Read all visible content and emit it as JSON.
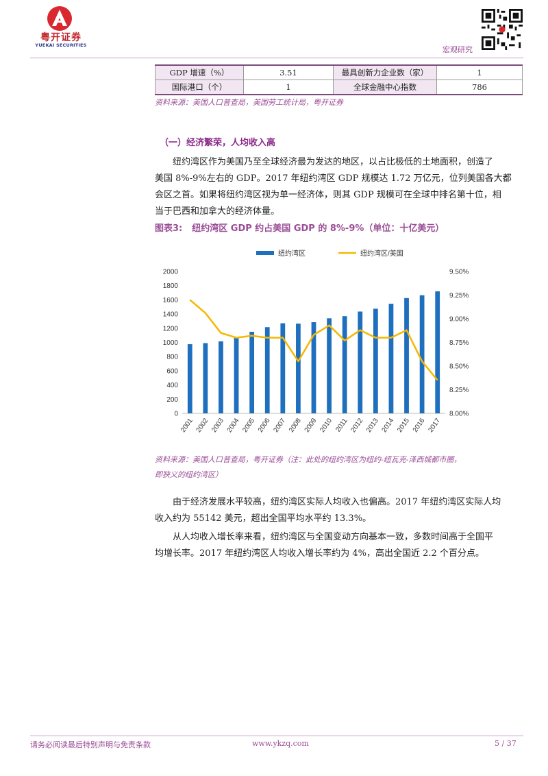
{
  "header": {
    "brand_cn": "粤开证券",
    "brand_en": "YUEKAI SECURITIES",
    "section_label": "宏观研究"
  },
  "table": {
    "rows": [
      [
        "GDP 增速（%）",
        "3.51",
        "最具创新力企业数（家）",
        "1"
      ],
      [
        "国际港口（个）",
        "1",
        "全球金融中心指数",
        "786"
      ]
    ],
    "source": "资料来源：美国人口普查局，美国劳工统计局，粤开证券"
  },
  "section": {
    "title": "（一）经济繁荣，人均收入高"
  },
  "paragraphs": {
    "p1_l1": "纽约湾区作为美国乃至全球经济最为发达的地区，以占比极低的土地面积，创造了",
    "p1_l2": "美国 8%-9%左右的 GDP。2017 年纽约湾区 GDP 规模达 1.72 万亿元，位列美国各大都",
    "p1_l3": "会区之首。如果将纽约湾区视为单一经济体，则其 GDP 规模可在全球中排名第十位，相",
    "p1_l4": "当于巴西和加拿大的经济体量。",
    "p2_l1": "由于经济发展水平较高，纽约湾区实际人均收入也偏高。2017 年纽约湾区实际人均",
    "p2_l2": "收入约为 55142 美元，超出全国平均水平约 13.3%。",
    "p3_l1": "从人均收入增长率来看，纽约湾区与全国变动方向基本一致，多数时间高于全国平",
    "p3_l2": "均增长率。2017 年纽约湾区人均收入增长率约为 4%，高出全国近 2.2 个百分点。"
  },
  "figure": {
    "number": "图表3:",
    "title": "纽约湾区 GDP 约占美国 GDP 的 8%-9%（单位：十亿美元）",
    "source_l1": "资料来源：美国人口普查局，粤开证券（注：此处的纽约湾区为纽约-纽瓦克-泽西城都市圈，",
    "source_l2": "即狭义的纽约湾区）"
  },
  "chart_data": {
    "type": "bar+line",
    "categories": [
      "2001",
      "2002",
      "2003",
      "2004",
      "2005",
      "2006",
      "2007",
      "2008",
      "2009",
      "2010",
      "2011",
      "2012",
      "2013",
      "2014",
      "2015",
      "2016",
      "2017"
    ],
    "series": [
      {
        "name": "纽约湾区",
        "kind": "bar",
        "axis": "left",
        "values": [
          975,
          990,
          1015,
          1075,
          1150,
          1215,
          1270,
          1265,
          1285,
          1340,
          1370,
          1435,
          1475,
          1545,
          1625,
          1665,
          1720
        ],
        "color": "#1f6fbf"
      },
      {
        "name": "纽约湾区/美国",
        "kind": "line",
        "axis": "right",
        "values": [
          9.2,
          9.06,
          8.85,
          8.8,
          8.82,
          8.8,
          8.8,
          8.55,
          8.83,
          8.93,
          8.77,
          8.88,
          8.8,
          8.8,
          8.88,
          8.55,
          8.35
        ],
        "color": "#f5b800"
      }
    ],
    "y_left": {
      "min": 0,
      "max": 2000,
      "ticks": [
        "0",
        "200",
        "400",
        "600",
        "800",
        "1000",
        "1200",
        "1400",
        "1600",
        "1800",
        "2000"
      ]
    },
    "y_right": {
      "min": 8.0,
      "max": 9.5,
      "ticks": [
        "8.00%",
        "8.25%",
        "8.50%",
        "8.75%",
        "9.00%",
        "9.25%",
        "9.50%"
      ]
    },
    "legend_position": "top"
  },
  "footer": {
    "disclaimer": "请务必阅读最后特别声明与免责条款",
    "url": "www.ykzq.com",
    "page": "5 / 37"
  },
  "colors": {
    "accent": "#9b4d96",
    "brand_red": "#c0272d",
    "brand_blue": "#2b3a8a"
  }
}
